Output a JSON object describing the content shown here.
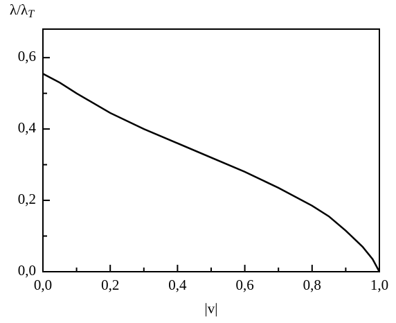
{
  "chart_data": {
    "type": "line",
    "y_label": "λ/λ",
    "y_label_subscript": "T",
    "x_label": "|v|",
    "x": [
      0,
      0.05,
      0.1,
      0.2,
      0.3,
      0.4,
      0.5,
      0.6,
      0.7,
      0.8,
      0.85,
      0.9,
      0.95,
      0.98,
      1.0
    ],
    "series": [
      {
        "color": "#000000",
        "values": [
          0.555,
          0.53,
          0.5,
          0.445,
          0.4,
          0.36,
          0.32,
          0.28,
          0.235,
          0.185,
          0.155,
          0.115,
          0.07,
          0.035,
          0.0
        ]
      }
    ],
    "xlim": [
      0,
      1.0
    ],
    "ylim": [
      0,
      0.68
    ],
    "xticks": [
      {
        "value": 0,
        "label": "0,0"
      },
      {
        "value": 0.2,
        "label": "0,2"
      },
      {
        "value": 0.4,
        "label": "0,4"
      },
      {
        "value": 0.6,
        "label": "0,6"
      },
      {
        "value": 0.8,
        "label": "0,8"
      },
      {
        "value": 1.0,
        "label": "1,0"
      }
    ],
    "xminorticks": [
      0.1,
      0.3,
      0.5,
      0.7,
      0.9
    ],
    "yticks": [
      {
        "value": 0,
        "label": "0,0"
      },
      {
        "value": 0.2,
        "label": "0,2"
      },
      {
        "value": 0.4,
        "label": "0,4"
      },
      {
        "value": 0.6,
        "label": "0,6"
      }
    ],
    "yminorticks": [
      0.1,
      0.3,
      0.5
    ],
    "grid": false
  }
}
